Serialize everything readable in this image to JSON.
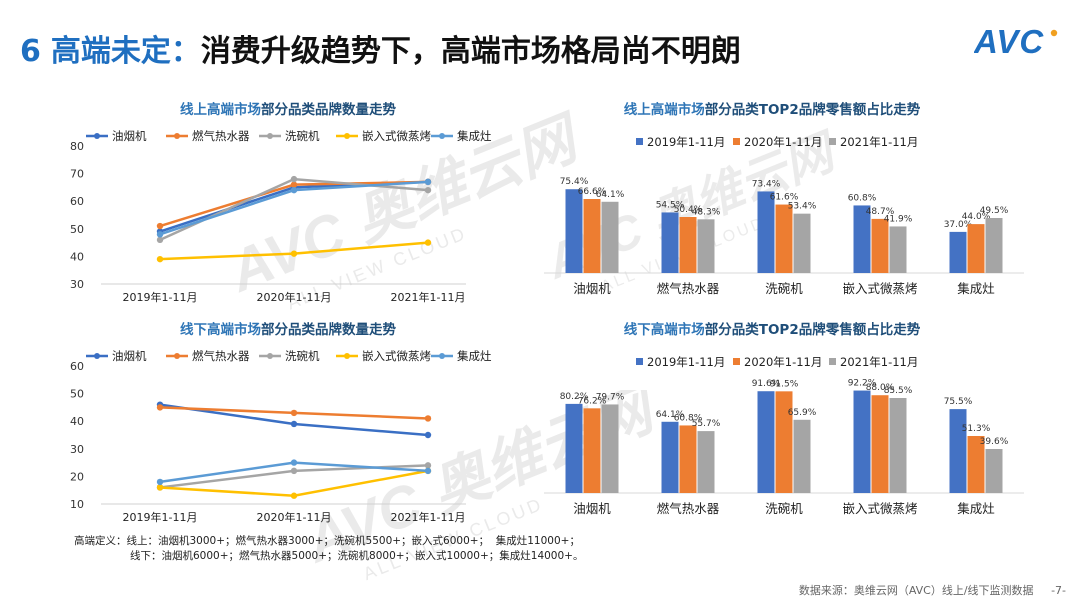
{
  "slide": {
    "number": "6",
    "title_highlight": "高端未定：",
    "title_rest": "消费升级趋势下，高端市场格局尚不明朗",
    "logo_text": "AVC"
  },
  "notes": {
    "line1": "高端定义：线上：油烟机3000+；燃气热水器3000+；洗碗机5500+；嵌入式6000+；  集成灶11000+；",
    "line2": "线下：油烟机6000+；燃气热水器5000+；洗碗机8000+；嵌入式10000+；集成灶14000+。"
  },
  "footer": {
    "source": "数据来源：奥维云网（AVC）线上/线下监测数据",
    "page": "-7-"
  },
  "watermark": {
    "brand": "AVC 奥维云网",
    "sub": "ALL VIEW CLOUD"
  },
  "chart_data": [
    {
      "id": "online_count",
      "type": "line",
      "title_highlight": "线上高端市场",
      "title_rest": "部分品类品牌数量走势",
      "categories": [
        "2019年1-11月",
        "2020年1-11月",
        "2021年1-11月"
      ],
      "ylim": [
        30,
        80
      ],
      "yticks": [
        30,
        40,
        50,
        60,
        70,
        80
      ],
      "series": [
        {
          "name": "油烟机",
          "color": "#3a6fc4",
          "values": [
            49,
            65,
            67
          ]
        },
        {
          "name": "燃气热水器",
          "color": "#ed7d31",
          "values": [
            51,
            66,
            67
          ]
        },
        {
          "name": "洗碗机",
          "color": "#a5a5a5",
          "values": [
            46,
            68,
            64
          ]
        },
        {
          "name": "嵌入式微蒸烤",
          "color": "#ffc000",
          "values": [
            39,
            41,
            45
          ]
        },
        {
          "name": "集成灶",
          "color": "#5b9bd5",
          "values": [
            48,
            64,
            67
          ]
        }
      ]
    },
    {
      "id": "offline_count",
      "type": "line",
      "title_highlight": "线下高端市场",
      "title_rest": "部分品类品牌数量走势",
      "categories": [
        "2019年1-11月",
        "2020年1-11月",
        "2021年1-11月"
      ],
      "ylim": [
        10,
        60
      ],
      "yticks": [
        10,
        20,
        30,
        40,
        50,
        60
      ],
      "series": [
        {
          "name": "油烟机",
          "color": "#3a6fc4",
          "values": [
            46,
            39,
            35
          ]
        },
        {
          "name": "燃气热水器",
          "color": "#ed7d31",
          "values": [
            45,
            43,
            41
          ]
        },
        {
          "name": "洗碗机",
          "color": "#a5a5a5",
          "values": [
            16,
            22,
            24
          ]
        },
        {
          "name": "嵌入式微蒸烤",
          "color": "#ffc000",
          "values": [
            16,
            13,
            22
          ]
        },
        {
          "name": "集成灶",
          "color": "#5b9bd5",
          "values": [
            18,
            25,
            22
          ]
        }
      ]
    },
    {
      "id": "online_top2",
      "type": "bar",
      "title_highlight": "线上高端市场",
      "title_rest": "部分品类TOP2品牌零售额占比走势",
      "categories": [
        "油烟机",
        "燃气热水器",
        "洗碗机",
        "嵌入式微蒸烤",
        "集成灶"
      ],
      "ylim": [
        0,
        100
      ],
      "series": [
        {
          "name": "2019年1-11月",
          "color": "#4472c4",
          "values": [
            75.4,
            54.5,
            73.4,
            60.8,
            37.0
          ],
          "labels": [
            "75.4%",
            "54.5%",
            "73.4%",
            "60.8%",
            "37.0%"
          ]
        },
        {
          "name": "2020年1-11月",
          "color": "#ed7d31",
          "values": [
            66.6,
            50.4,
            61.6,
            48.7,
            44.0
          ],
          "labels": [
            "66.6%",
            "50.4%",
            "61.6%",
            "48.7%",
            "44.0%"
          ]
        },
        {
          "name": "2021年1-11月",
          "color": "#a5a5a5",
          "values": [
            64.1,
            48.3,
            53.4,
            41.9,
            49.5
          ],
          "labels": [
            "64.1%",
            "48.3%",
            "53.4%",
            "41.9%",
            "49.5%"
          ]
        }
      ]
    },
    {
      "id": "offline_top2",
      "type": "bar",
      "title_highlight": "线下高端市场",
      "title_rest": "部分品类TOP2品牌零售额占比走势",
      "categories": [
        "油烟机",
        "燃气热水器",
        "洗碗机",
        "嵌入式微蒸烤",
        "集成灶"
      ],
      "ylim": [
        0,
        100
      ],
      "series": [
        {
          "name": "2019年1-11月",
          "color": "#4472c4",
          "values": [
            80.2,
            64.1,
            91.6,
            92.2,
            75.5
          ],
          "labels": [
            "80.2%",
            "64.1%",
            "91.6%",
            "92.2%",
            "75.5%"
          ]
        },
        {
          "name": "2020年1-11月",
          "color": "#ed7d31",
          "values": [
            76.2,
            60.8,
            91.5,
            88.0,
            51.3
          ],
          "labels": [
            "76.2%",
            "60.8%",
            "91.5%",
            "88.0%",
            "51.3%"
          ]
        },
        {
          "name": "2021年1-11月",
          "color": "#a5a5a5",
          "values": [
            79.7,
            55.7,
            65.9,
            85.5,
            39.6
          ],
          "labels": [
            "79.7%",
            "55.7%",
            "65.9%",
            "85.5%",
            "39.6%"
          ]
        }
      ]
    }
  ]
}
